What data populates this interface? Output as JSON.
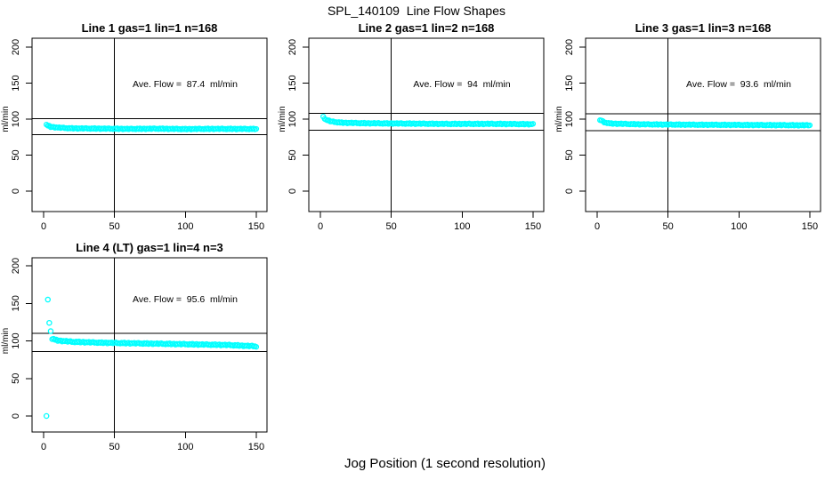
{
  "chart_data": {
    "type": "scatter",
    "title": "SPL_140109  Line Flow Shapes",
    "xlabel": "Jog Position (1 second resolution)",
    "ylabel": "ml/min",
    "x_ticks": [
      0,
      50,
      100,
      150
    ],
    "y_ticks": [
      0,
      50,
      100,
      150,
      200
    ],
    "xlim": [
      -8,
      158
    ],
    "ylim": [
      -17,
      213
    ],
    "grid": false,
    "legend": "none",
    "point_color": "#00FFFF",
    "axis_color": "#000000",
    "background_color": "#FFFFFF",
    "marker": "open-circle",
    "noise_pattern": [
      0.45,
      -0.3,
      0.7,
      -0.55,
      0.15,
      0.5,
      -0.7,
      0.25,
      -0.15,
      0.6,
      -0.45,
      0.3,
      0.65,
      -0.35,
      0.05,
      -0.6
    ],
    "panels": [
      {
        "title": "Line 1 gas=1 lin=1 n=168",
        "annotation": "Ave. Flow =  87.4  ml/min",
        "ave_flow": 87.4,
        "n": 168,
        "vline_x": 50,
        "hlines": [
          100.5,
          78.7
        ],
        "x_range": [
          2,
          150
        ],
        "profile": [
          [
            2,
            92
          ],
          [
            5,
            89.3
          ],
          [
            10,
            88.2
          ],
          [
            20,
            87.2
          ],
          [
            40,
            86.8
          ],
          [
            60,
            86.4
          ],
          [
            80,
            86.7
          ],
          [
            100,
            86.2
          ],
          [
            120,
            86.5
          ],
          [
            150,
            86.3
          ]
        ],
        "noise": 1.0,
        "outliers": []
      },
      {
        "title": "Line 2 gas=1 lin=2 n=168",
        "annotation": "Ave. Flow =  94  ml/min",
        "ave_flow": 94,
        "n": 168,
        "vline_x": 50,
        "hlines": [
          108.1,
          84.6
        ],
        "x_range": [
          2,
          150
        ],
        "profile": [
          [
            2,
            103
          ],
          [
            4,
            99
          ],
          [
            8,
            96.5
          ],
          [
            15,
            95
          ],
          [
            30,
            94.3
          ],
          [
            60,
            93.8
          ],
          [
            90,
            93.3
          ],
          [
            120,
            93.4
          ],
          [
            150,
            92.9
          ]
        ],
        "noise": 1.1,
        "outliers": []
      },
      {
        "title": "Line 3 gas=1 lin=3 n=168",
        "annotation": "Ave. Flow =  93.6  ml/min",
        "ave_flow": 93.6,
        "n": 168,
        "vline_x": 50,
        "hlines": [
          107.6,
          84.2
        ],
        "x_range": [
          2,
          150
        ],
        "profile": [
          [
            2,
            99
          ],
          [
            5,
            95.5
          ],
          [
            10,
            93.8
          ],
          [
            30,
            92.8
          ],
          [
            60,
            92.3
          ],
          [
            90,
            92
          ],
          [
            120,
            91.7
          ],
          [
            150,
            91.4
          ]
        ],
        "noise": 1.0,
        "outliers": []
      },
      {
        "title": "Line 4 (LT) gas=1 lin=4 n=3",
        "annotation": "Ave. Flow =  95.6  ml/min",
        "ave_flow": 95.6,
        "n": 3,
        "vline_x": 50,
        "hlines": [
          109.9,
          86.0
        ],
        "x_range": [
          6,
          150
        ],
        "profile": [
          [
            6,
            103
          ],
          [
            10,
            100.5
          ],
          [
            20,
            98.8
          ],
          [
            40,
            97.6
          ],
          [
            70,
            96.6
          ],
          [
            100,
            95.6
          ],
          [
            130,
            94.5
          ],
          [
            150,
            92.8
          ]
        ],
        "noise": 1.2,
        "outliers": [
          [
            2,
            0
          ],
          [
            3,
            155
          ],
          [
            4,
            124
          ],
          [
            5,
            113
          ]
        ]
      }
    ]
  }
}
